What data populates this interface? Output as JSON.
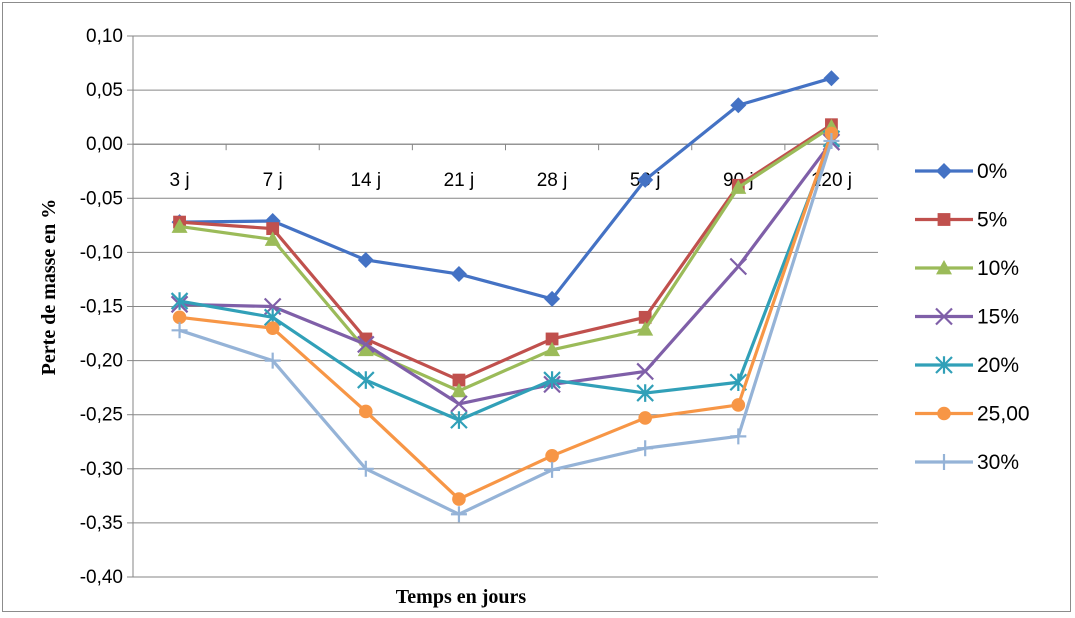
{
  "chart_data": {
    "type": "line",
    "title": "",
    "xlabel": "Temps en jours",
    "ylabel": "Perte de masse en %",
    "categories": [
      "3 j",
      "7 j",
      "14 j",
      "21 j",
      "28 j",
      "56 j",
      "90 j",
      "120 j"
    ],
    "ylim": [
      -0.4,
      0.1
    ],
    "yticks": [
      "0,10",
      "0,05",
      "0,00",
      "-0,05",
      "-0,10",
      "-0,15",
      "-0,20",
      "-0,25",
      "-0,30",
      "-0,35",
      "-0,40"
    ],
    "grid": true,
    "legend_position": "right",
    "series": [
      {
        "name": "0%",
        "color": "#4472c4",
        "marker": "diamond",
        "values": [
          -0.072,
          -0.071,
          -0.107,
          -0.12,
          -0.143,
          -0.033,
          0.036,
          0.061
        ]
      },
      {
        "name": "5%",
        "color": "#c0504d",
        "marker": "square",
        "values": [
          -0.072,
          -0.078,
          -0.18,
          -0.218,
          -0.18,
          -0.16,
          -0.038,
          0.018
        ]
      },
      {
        "name": "10%",
        "color": "#9bbb59",
        "marker": "triangle",
        "values": [
          -0.076,
          -0.088,
          -0.19,
          -0.228,
          -0.19,
          -0.171,
          -0.04,
          0.016
        ]
      },
      {
        "name": "15%",
        "color": "#7f5fa8",
        "marker": "x",
        "values": [
          -0.148,
          -0.15,
          -0.185,
          -0.24,
          -0.222,
          -0.21,
          -0.113,
          0.002
        ]
      },
      {
        "name": "20%",
        "color": "#31a0b8",
        "marker": "star",
        "values": [
          -0.145,
          -0.16,
          -0.218,
          -0.255,
          -0.218,
          -0.23,
          -0.22,
          0.005
        ]
      },
      {
        "name": "25,00",
        "color": "#f79646",
        "marker": "circle",
        "values": [
          -0.16,
          -0.17,
          -0.247,
          -0.328,
          -0.288,
          -0.253,
          -0.241,
          0.01
        ]
      },
      {
        "name": "30%",
        "color": "#95b3d7",
        "marker": "plus",
        "values": [
          -0.172,
          -0.2,
          -0.3,
          -0.342,
          -0.301,
          -0.281,
          -0.27,
          0.003
        ]
      }
    ]
  }
}
